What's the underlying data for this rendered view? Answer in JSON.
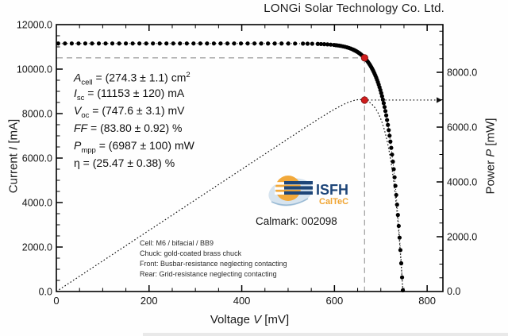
{
  "title": "LONGi Solar Technology Co. Ltd.",
  "chart_data": {
    "type": "scatter",
    "title": "LONGi Solar Technology Co. Ltd.",
    "xlabel": {
      "pre": "Voltage ",
      "var": "V",
      "post": " [mV]"
    },
    "ylabel_left": {
      "pre": "Current ",
      "var": "I",
      "post": " [mA]"
    },
    "ylabel_right": {
      "pre": "Power ",
      "var": "P",
      "post": " [mW]"
    },
    "x_axis": {
      "min": 0,
      "max": 834,
      "major_ticks": [
        0,
        200,
        400,
        600,
        800
      ],
      "minor_step": 50
    },
    "y_axis_left": {
      "min": 0,
      "max": 12000,
      "major_ticks": [
        0,
        2000,
        4000,
        6000,
        8000,
        10000,
        12000
      ],
      "minor_step": 500
    },
    "y_axis_right": {
      "min": 0,
      "max": 9740,
      "major_ticks": [
        0,
        2000,
        4000,
        6000,
        8000
      ],
      "minor_step": 500
    },
    "grid": false,
    "series": [
      {
        "name": "I-V characteristic",
        "style": "black filled circle markers",
        "isc_mA": 11153,
        "voc_mV": 747.6
      },
      {
        "name": "P-V power curve",
        "style": "black dotted line, right axis",
        "pmpp_mW": 6987
      }
    ],
    "mpp": {
      "v_mV": 665,
      "i_mA": 10507,
      "p_mW": 6987
    },
    "guides": {
      "gray_dashed": "horizontal at Impp from left axis and vertical at Vmpp to x-axis",
      "dotted_arrow": "horizontal from Pmpp point to right axis with arrowhead"
    }
  },
  "annotations": {
    "lines": [
      {
        "v": "A",
        "sub": "cell",
        "rest": " = (274.3 ± 1.1) cm",
        "sup": "2",
        "italic": true
      },
      {
        "v": "I",
        "sub": "sc",
        "rest": " = (11153 ± 120) mA",
        "italic": true
      },
      {
        "v": "V",
        "sub": "oc",
        "rest": " = (747.6 ± 3.1) mV",
        "italic": true
      },
      {
        "v": "FF",
        "rest": " = (83.80 ± 0.92) %",
        "italic": true
      },
      {
        "v": "P",
        "sub": "mpp",
        "rest": " = (6987 ± 100) mW",
        "italic": true
      },
      {
        "v": "η",
        "rest": " = (25.47 ± 0.38) %",
        "italic": false
      }
    ]
  },
  "calmark": "Calmark: 002098",
  "logo": {
    "org": "ISFH",
    "unit": "CalTeC"
  },
  "notes": [
    "Cell: M6 / bifacial / BB9",
    "Chuck: gold-coated brass chuck",
    "Front: Busbar-resistance neglecting contacting",
    "Rear: Grid-resistance neglecting contacting"
  ],
  "colors": {
    "marker": "#000000",
    "mpp_marker": "#cf1d1d",
    "mpp_marker_edge": "#7a1010",
    "gray_guide": "#a3a3a3",
    "axis": "#000000",
    "logo_navy": "#1e4679",
    "logo_orange": "#f0a431",
    "logo_wash": "#a9c6dd"
  }
}
